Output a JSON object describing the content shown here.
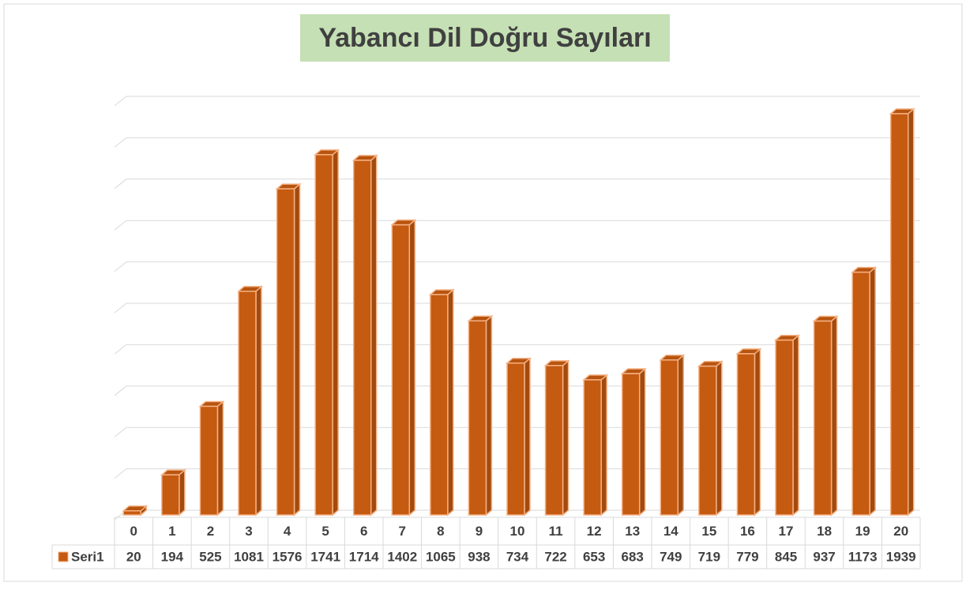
{
  "chart_data": {
    "type": "bar",
    "title": "Yabancı Dil Doğru Sayıları",
    "categories": [
      "0",
      "1",
      "2",
      "3",
      "4",
      "5",
      "6",
      "7",
      "8",
      "9",
      "10",
      "11",
      "12",
      "13",
      "14",
      "15",
      "16",
      "17",
      "18",
      "19",
      "20"
    ],
    "series": [
      {
        "name": "Seri1",
        "color": "#c55a11",
        "values": [
          20,
          194,
          525,
          1081,
          1576,
          1741,
          1714,
          1402,
          1065,
          938,
          734,
          722,
          653,
          683,
          749,
          719,
          779,
          845,
          937,
          1173,
          1939
        ]
      }
    ],
    "ylim": [
      0,
      2000
    ],
    "yticks": [
      0,
      200,
      400,
      600,
      800,
      1000,
      1200,
      1400,
      1600,
      1800,
      2000
    ],
    "grid": true
  }
}
